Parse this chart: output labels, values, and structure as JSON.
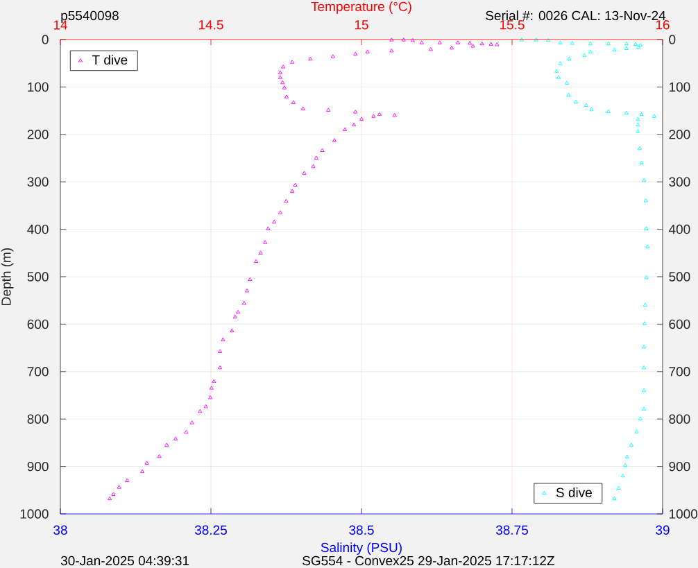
{
  "chart_data": {
    "type": "scatter",
    "title": "p5540098",
    "annotations": [
      "Serial #: 0026 CAL: 13-Nov-24",
      "30-Jan-2025 04:39:31",
      "SG554 - Convex25 29-Jan-2025 17:17:12Z"
    ],
    "xlabel": "Salinity (PSU)",
    "x2label": "Temperature (°C)",
    "ylabel": "Depth (m)",
    "xlim": [
      38,
      39
    ],
    "xticks": [
      38,
      38.25,
      38.5,
      38.75,
      39
    ],
    "x2lim": [
      14,
      16
    ],
    "x2ticks": [
      14,
      14.5,
      15,
      15.5,
      16
    ],
    "ylim": [
      1000,
      0
    ],
    "yticks": [
      0,
      100,
      200,
      300,
      400,
      500,
      600,
      700,
      800,
      900,
      1000
    ],
    "y2lim": [
      1000,
      0
    ],
    "y2ticks": [
      0,
      100,
      200,
      300,
      400,
      500,
      600,
      700,
      800,
      900,
      1000
    ],
    "grid": true,
    "marker": "triangle",
    "legend": "top left",
    "series": [
      {
        "name": "T dive",
        "color": "#ff00ff",
        "axis": "x2",
        "x": [
          15.1,
          15.14,
          15.17,
          15.2,
          15.26,
          15.32,
          15.36,
          15.4,
          15.43,
          15.45,
          15.37,
          15.3,
          15.23,
          15.1,
          15.02,
          14.98,
          14.905,
          14.83,
          14.77,
          14.74,
          14.73,
          14.73,
          14.738,
          14.744,
          14.751,
          14.774,
          14.806,
          14.89,
          14.98,
          15.06,
          15.11,
          15.04,
          15.0,
          14.975,
          14.945,
          14.91,
          14.87,
          14.85,
          14.84,
          14.81,
          14.78,
          14.77,
          14.75,
          14.73,
          14.71,
          14.69,
          14.68,
          14.665,
          14.65,
          14.63,
          14.62,
          14.61,
          14.59,
          14.58,
          14.57,
          14.54,
          14.53,
          14.53,
          14.51,
          14.502,
          14.498,
          14.483,
          14.464,
          14.437,
          14.418,
          14.383,
          14.353,
          14.329,
          14.287,
          14.272,
          14.222,
          14.195,
          14.176,
          14.164
        ],
        "values": [
          1,
          1,
          2,
          7,
          7,
          7,
          8,
          9,
          10,
          11,
          14,
          18,
          21,
          24,
          26,
          31,
          36,
          41,
          48,
          58,
          70,
          80,
          91,
          102,
          121,
          133,
          146,
          149,
          153,
          158,
          160,
          162,
          168,
          180,
          190,
          213,
          234,
          250,
          268,
          282,
          307,
          320,
          341,
          365,
          385,
          399,
          428,
          450,
          468,
          506,
          530,
          556,
          575,
          585,
          614,
          633,
          658,
          692,
          721,
          735,
          755,
          774,
          784,
          808,
          828,
          842,
          855,
          879,
          893,
          911,
          930,
          944,
          959,
          968
        ]
      },
      {
        "name": "S dive",
        "color": "#00ffff",
        "x": [
          38.766,
          38.79,
          38.81,
          38.83,
          38.85,
          38.88,
          38.91,
          38.94,
          38.955,
          38.963,
          38.96,
          38.94,
          38.92,
          38.88,
          38.87,
          38.845,
          38.83,
          38.824,
          38.827,
          38.841,
          38.844,
          38.856,
          38.873,
          38.882,
          38.91,
          38.94,
          38.965,
          38.986,
          38.959,
          38.959,
          38.959,
          38.962,
          38.965,
          38.969,
          38.972,
          38.973,
          38.975,
          38.973,
          38.971,
          38.97,
          38.969,
          38.969,
          38.969,
          38.969,
          38.963,
          38.957,
          38.948,
          38.941,
          38.938,
          38.934,
          38.927,
          38.92
        ],
        "values": [
          1,
          1,
          2,
          7,
          8,
          9,
          9,
          9,
          10,
          12,
          16,
          19,
          22,
          26,
          34,
          41,
          51,
          67,
          80,
          92,
          117,
          132,
          139,
          148,
          152,
          155,
          158,
          162,
          168,
          180,
          194,
          230,
          260,
          297,
          340,
          399,
          437,
          502,
          560,
          599,
          648,
          692,
          740,
          779,
          800,
          827,
          855,
          880,
          898,
          920,
          946,
          968
        ]
      }
    ]
  }
}
